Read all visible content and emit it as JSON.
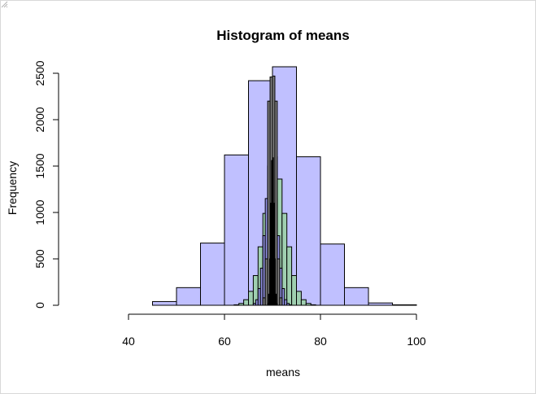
{
  "chart_data": {
    "type": "bar",
    "title": "Histogram of means",
    "xlabel": "means",
    "ylabel": "Frequency",
    "xlim": [
      30,
      100
    ],
    "ylim": [
      0,
      2600
    ],
    "xticks": [
      40,
      60,
      80,
      100
    ],
    "yticks": [
      0,
      500,
      1000,
      1500,
      2000,
      2500
    ],
    "legend": "none",
    "grid": false,
    "series": [
      {
        "fill": "#c0c0ff",
        "breaks": [
          40,
          45,
          50,
          55,
          60,
          65,
          70,
          75,
          80,
          85,
          90,
          95,
          100
        ],
        "values": [
          0,
          40,
          190,
          670,
          1620,
          2420,
          2570,
          1600,
          660,
          190,
          25,
          5
        ]
      },
      {
        "fill": "#9fcfb0",
        "breaks": [
          62,
          63,
          64,
          65,
          66,
          67,
          68,
          69,
          70,
          71,
          72,
          73,
          74,
          75,
          76,
          77,
          78,
          79
        ],
        "values": [
          5,
          20,
          60,
          150,
          320,
          630,
          990,
          1360,
          1600,
          1360,
          990,
          630,
          320,
          150,
          60,
          20,
          5
        ]
      },
      {
        "fill": "#9090e0",
        "breaks": [
          66,
          66.5,
          67,
          67.5,
          68,
          68.5,
          69,
          69.5,
          70,
          70.5,
          71,
          71.5,
          72,
          72.5,
          73,
          73.5,
          74
        ],
        "values": [
          20,
          60,
          180,
          400,
          750,
          1150,
          1500,
          1640,
          1500,
          1150,
          750,
          400,
          180,
          60,
          20,
          5
        ]
      },
      {
        "fill": "#808080",
        "breaks": [
          68,
          68.5,
          69,
          69.5,
          70,
          70.5,
          71,
          71.5,
          72
        ],
        "values": [
          80,
          500,
          2200,
          2460,
          2470,
          2200,
          500,
          80
        ]
      },
      {
        "fill": "#000000",
        "breaks": [
          69,
          69.2,
          69.4,
          69.6,
          69.8,
          70,
          70.2,
          70.4,
          70.6,
          70.8,
          71
        ],
        "values": [
          20,
          120,
          500,
          1100,
          1560,
          1590,
          1100,
          500,
          120,
          20
        ]
      }
    ]
  }
}
